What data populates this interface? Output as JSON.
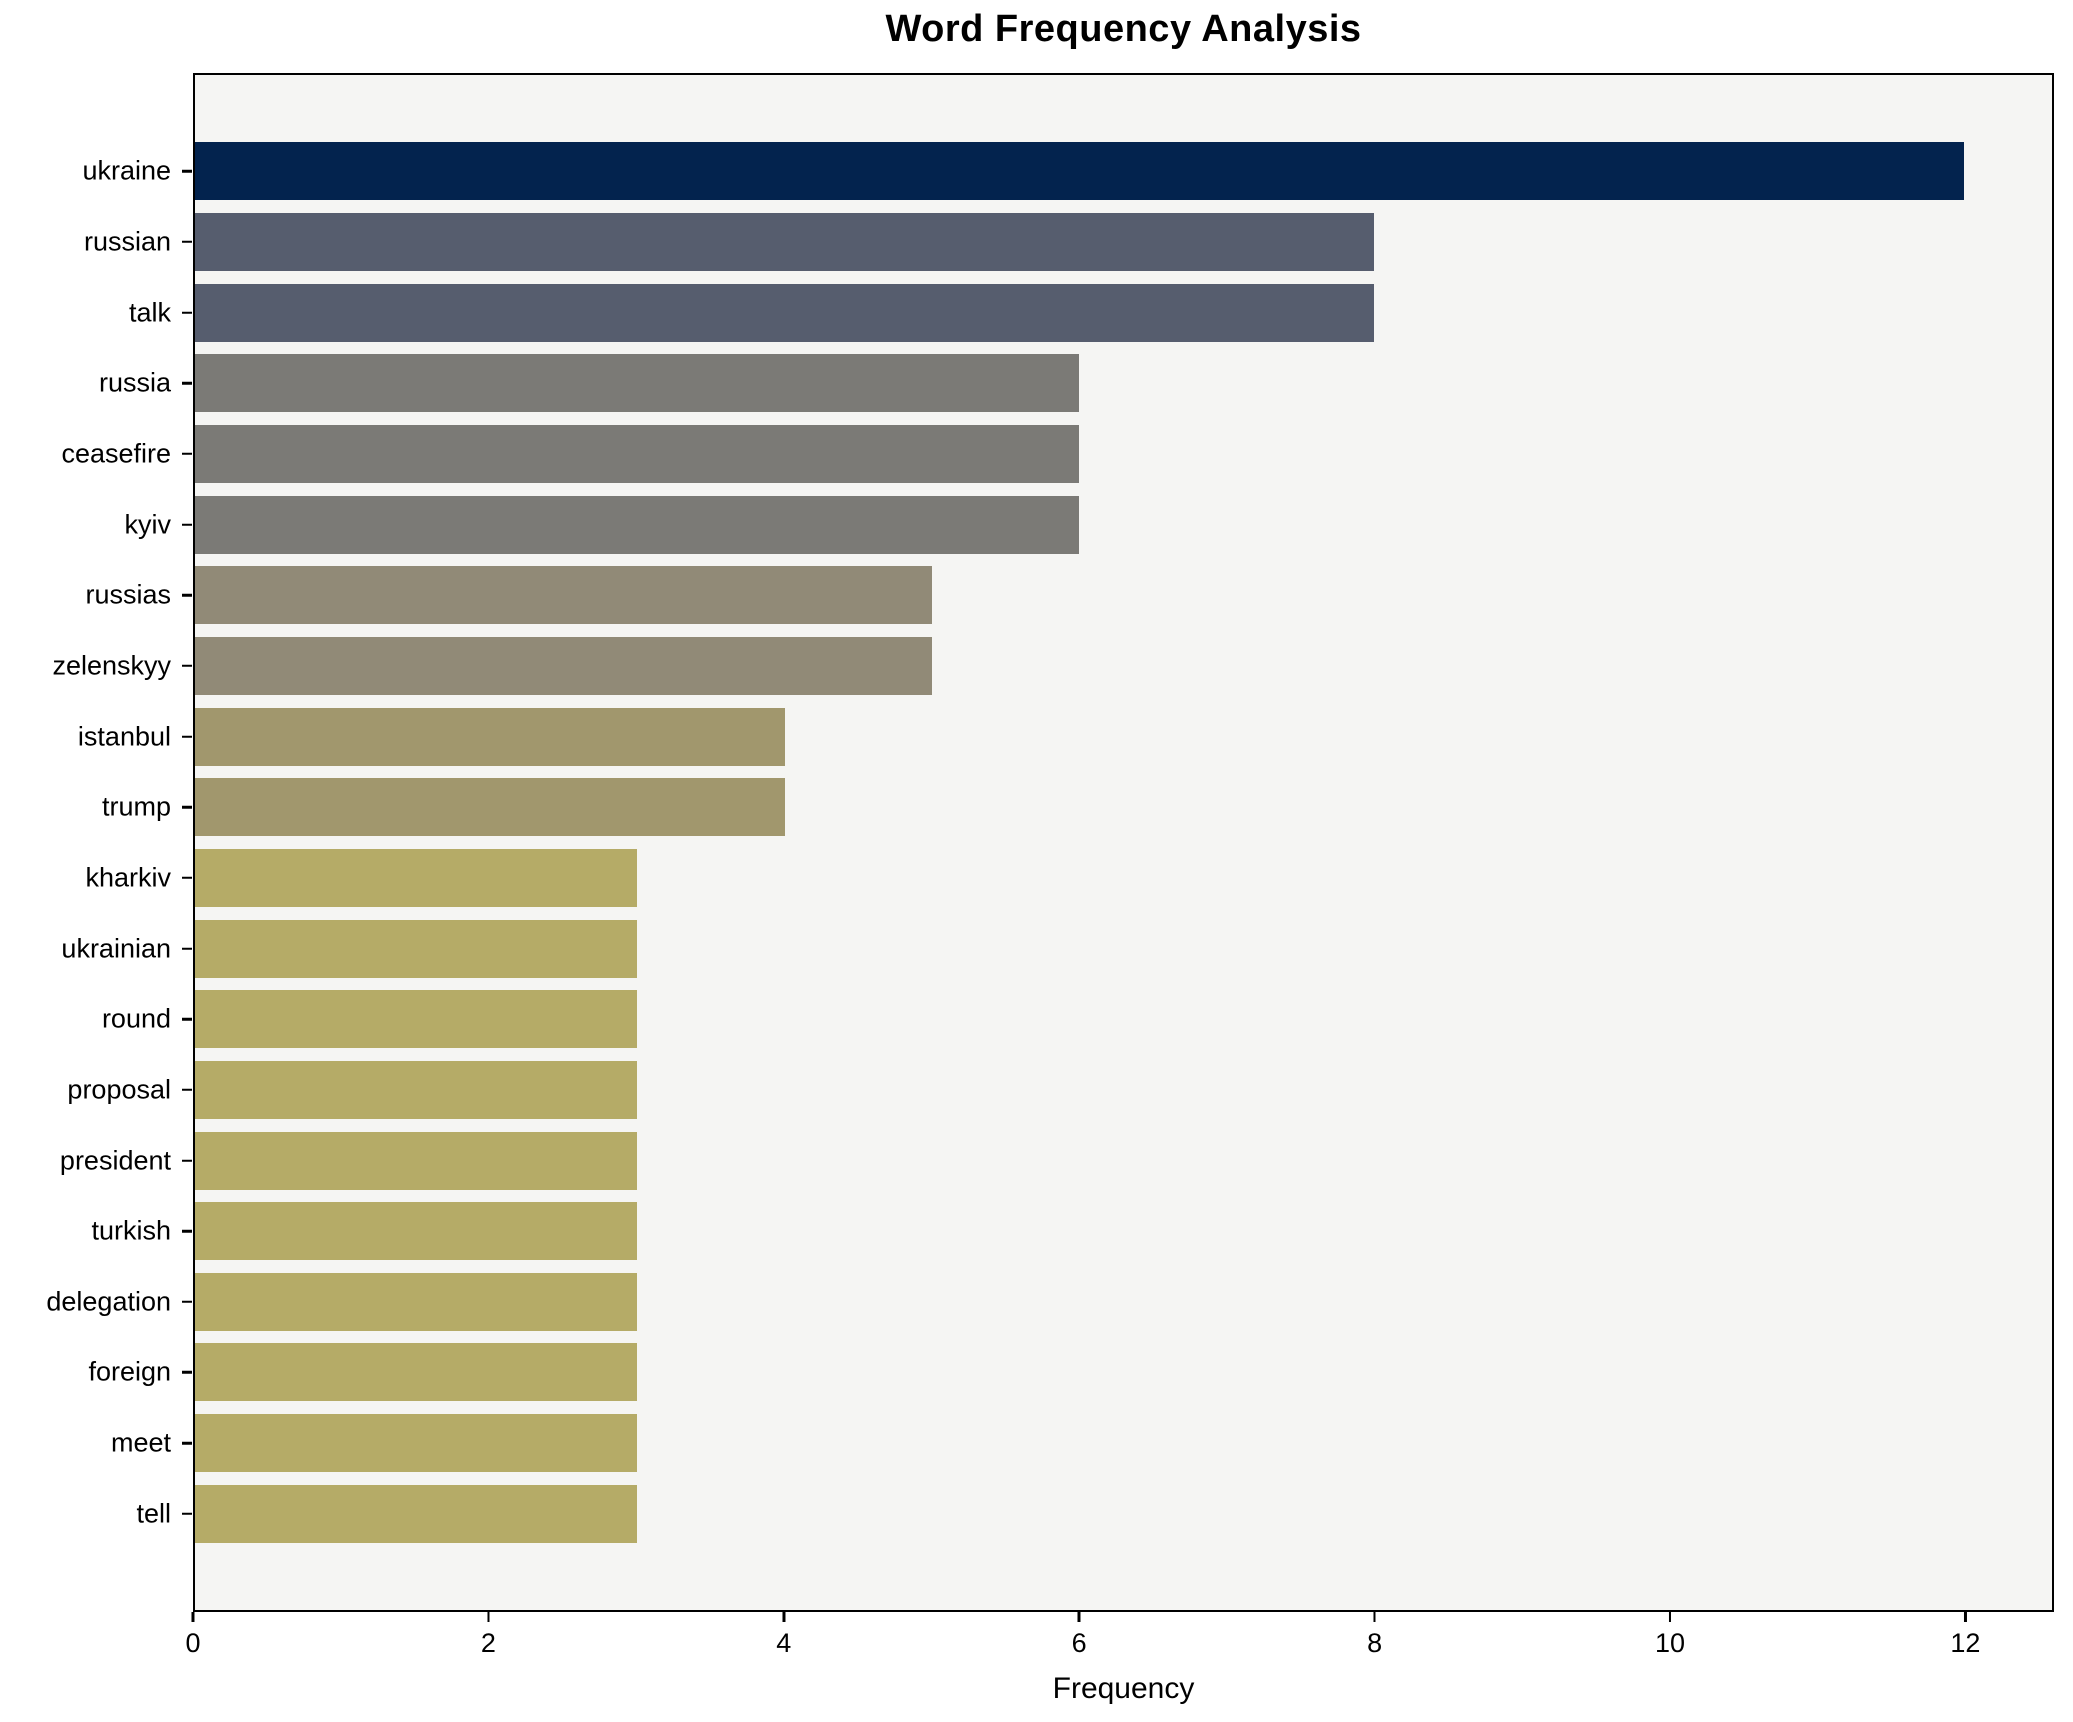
{
  "chart_data": {
    "type": "bar",
    "orientation": "horizontal",
    "title": "Word Frequency Analysis",
    "xlabel": "Frequency",
    "ylabel": "",
    "categories": [
      "ukraine",
      "russian",
      "talk",
      "russia",
      "ceasefire",
      "kyiv",
      "russias",
      "zelenskyy",
      "istanbul",
      "trump",
      "kharkiv",
      "ukrainian",
      "round",
      "proposal",
      "president",
      "turkish",
      "delegation",
      "foreign",
      "meet",
      "tell"
    ],
    "values": [
      12,
      8,
      8,
      6,
      6,
      6,
      5,
      5,
      4,
      4,
      3,
      3,
      3,
      3,
      3,
      3,
      3,
      3,
      3,
      3
    ],
    "bar_colors": [
      "#03234e",
      "#565d6e",
      "#565d6e",
      "#7b7a76",
      "#7b7a76",
      "#7b7a76",
      "#918a77",
      "#918a77",
      "#a1976d",
      "#a1976d",
      "#b5ab67",
      "#b5ab67",
      "#b5ab67",
      "#b5ab67",
      "#b5ab67",
      "#b5ab67",
      "#b5ab67",
      "#b5ab67",
      "#b5ab67",
      "#b5ab67"
    ],
    "xticks": [
      0,
      2,
      4,
      6,
      8,
      10,
      12
    ],
    "xlim": [
      0,
      12.6
    ],
    "grid": false,
    "legend_position": "none",
    "plot_background": "#f5f5f3",
    "spine_color": "#000000"
  }
}
